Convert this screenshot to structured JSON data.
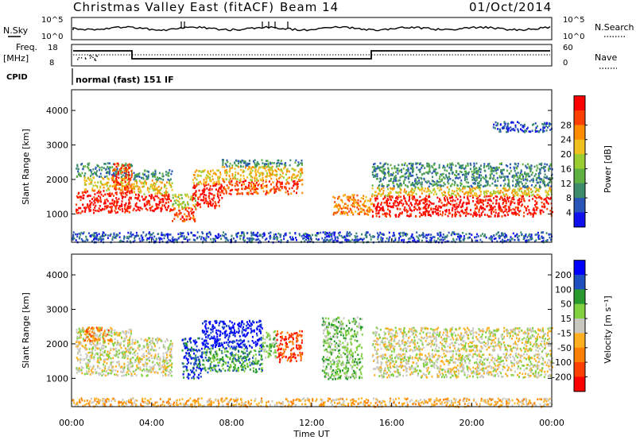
{
  "header": {
    "title": "Christmas Valley East (fitACF)",
    "beam": "Beam 14",
    "date": "01/Oct/2014"
  },
  "noise_panel": {
    "left_label": "N.Sky",
    "right_label": "N.Search",
    "left_ticks": [
      "10^5",
      "10^0"
    ],
    "right_ticks": [
      "10^5",
      "10^0"
    ]
  },
  "freq_panel": {
    "left_label_1": "Freq.",
    "left_label_2": "[MHz]",
    "right_label": "Nave",
    "left_ticks": [
      "18",
      "8"
    ],
    "right_ticks": [
      "60",
      "0"
    ]
  },
  "cpid": {
    "label": "CPID",
    "program": "normal (fast) 151 IF"
  },
  "x_axis": {
    "label": "Time UT",
    "ticks": [
      "00:00",
      "04:00",
      "08:00",
      "12:00",
      "16:00",
      "20:00",
      "00:00"
    ]
  },
  "colors": {
    "power": [
      "#1010ee",
      "#2a55b8",
      "#3c8c6c",
      "#5eb040",
      "#9acd32",
      "#f0c020",
      "#ff8c00",
      "#ff4000",
      "#ff0000"
    ],
    "velocity": [
      "#ff0000",
      "#ff4000",
      "#ff8000",
      "#ffb020",
      "#c8c8c0",
      "#80d040",
      "#2a9a30",
      "#2050c0",
      "#0000ff"
    ]
  },
  "chart_data": [
    {
      "type": "heatmap",
      "title": "Power",
      "ylabel": "Slant Range [km]",
      "xlabel": "",
      "x_range_hours": [
        0,
        24
      ],
      "ylim": [
        180,
        4600
      ],
      "yticks": [
        "1000",
        "2000",
        "3000",
        "4000"
      ],
      "colorbar": {
        "label": "Power [dB]",
        "ticks": [
          "4",
          "8",
          "12",
          "16",
          "20",
          "24",
          "28"
        ]
      },
      "bands": [
        {
          "t": [
            0.2,
            3.0
          ],
          "r": [
            1050,
            1700
          ],
          "level": 8
        },
        {
          "t": [
            0.6,
            2.8
          ],
          "r": [
            1700,
            2100
          ],
          "level": 5
        },
        {
          "t": [
            0.2,
            3.0
          ],
          "r": [
            2100,
            2500
          ],
          "level": 2
        },
        {
          "t": [
            2.0,
            3.0
          ],
          "r": [
            1600,
            2500
          ],
          "level": 7
        },
        {
          "t": [
            3.0,
            5.0
          ],
          "r": [
            1100,
            1600
          ],
          "level": 8
        },
        {
          "t": [
            3.0,
            5.0
          ],
          "r": [
            1600,
            2000
          ],
          "level": 5
        },
        {
          "t": [
            3.0,
            5.0
          ],
          "r": [
            2000,
            2300
          ],
          "level": 2
        },
        {
          "t": [
            5.0,
            6.2
          ],
          "r": [
            800,
            1200
          ],
          "level": 7
        },
        {
          "t": [
            5.0,
            6.2
          ],
          "r": [
            1200,
            1600
          ],
          "level": 4
        },
        {
          "t": [
            6.0,
            7.5
          ],
          "r": [
            1200,
            1900
          ],
          "level": 8
        },
        {
          "t": [
            6.0,
            7.5
          ],
          "r": [
            1900,
            2300
          ],
          "level": 5
        },
        {
          "t": [
            7.5,
            11.5
          ],
          "r": [
            1600,
            2000
          ],
          "level": 7
        },
        {
          "t": [
            7.5,
            11.5
          ],
          "r": [
            2000,
            2400
          ],
          "level": 5
        },
        {
          "t": [
            7.5,
            11.5
          ],
          "r": [
            2400,
            2600
          ],
          "level": 2
        },
        {
          "t": [
            13.0,
            15.0
          ],
          "r": [
            1000,
            1600
          ],
          "level": 6
        },
        {
          "t": [
            15.0,
            24.0
          ],
          "r": [
            950,
            1550
          ],
          "level": 8
        },
        {
          "t": [
            15.0,
            24.0
          ],
          "r": [
            1550,
            1800
          ],
          "level": 5
        },
        {
          "t": [
            15.0,
            24.0
          ],
          "r": [
            1800,
            2500
          ],
          "level": 2
        },
        {
          "t": [
            0.0,
            24.0
          ],
          "r": [
            200,
            500
          ],
          "level": 1
        },
        {
          "t": [
            21.0,
            24.0
          ],
          "r": [
            3400,
            3700
          ],
          "level": 1
        }
      ]
    },
    {
      "type": "heatmap",
      "title": "Velocity",
      "ylabel": "Slant Range [km]",
      "xlabel": "Time UT",
      "x_range_hours": [
        0,
        24
      ],
      "ylim": [
        180,
        4600
      ],
      "yticks": [
        "1000",
        "2000",
        "3000",
        "4000"
      ],
      "colorbar": {
        "label": "Velocity [m s⁻¹]",
        "ticks": [
          "200",
          "100",
          "50",
          "15",
          "-15",
          "-50",
          "-100",
          "-200"
        ]
      },
      "bands": [
        {
          "t": [
            0.2,
            3.0
          ],
          "r": [
            1100,
            2500
          ],
          "level": 4
        },
        {
          "t": [
            0.6,
            2.0
          ],
          "r": [
            2100,
            2500
          ],
          "level": 2
        },
        {
          "t": [
            3.0,
            5.0
          ],
          "r": [
            1100,
            2200
          ],
          "level": 4
        },
        {
          "t": [
            5.5,
            6.5
          ],
          "r": [
            1000,
            2200
          ],
          "level": 7
        },
        {
          "t": [
            6.5,
            9.5
          ],
          "r": [
            1200,
            1900
          ],
          "level": 6
        },
        {
          "t": [
            6.5,
            9.5
          ],
          "r": [
            1900,
            2700
          ],
          "level": 8
        },
        {
          "t": [
            9.5,
            10.2
          ],
          "r": [
            1600,
            2400
          ],
          "level": 5
        },
        {
          "t": [
            10.2,
            11.5
          ],
          "r": [
            1500,
            2400
          ],
          "level": 1
        },
        {
          "t": [
            12.5,
            14.5
          ],
          "r": [
            1000,
            2800
          ],
          "level": 5
        },
        {
          "t": [
            15.0,
            24.0
          ],
          "r": [
            1050,
            1750
          ],
          "level": 4
        },
        {
          "t": [
            15.0,
            24.0
          ],
          "r": [
            1800,
            2500
          ],
          "level": 4
        },
        {
          "t": [
            0.0,
            24.0
          ],
          "r": [
            200,
            450
          ],
          "level": 3
        }
      ]
    }
  ]
}
